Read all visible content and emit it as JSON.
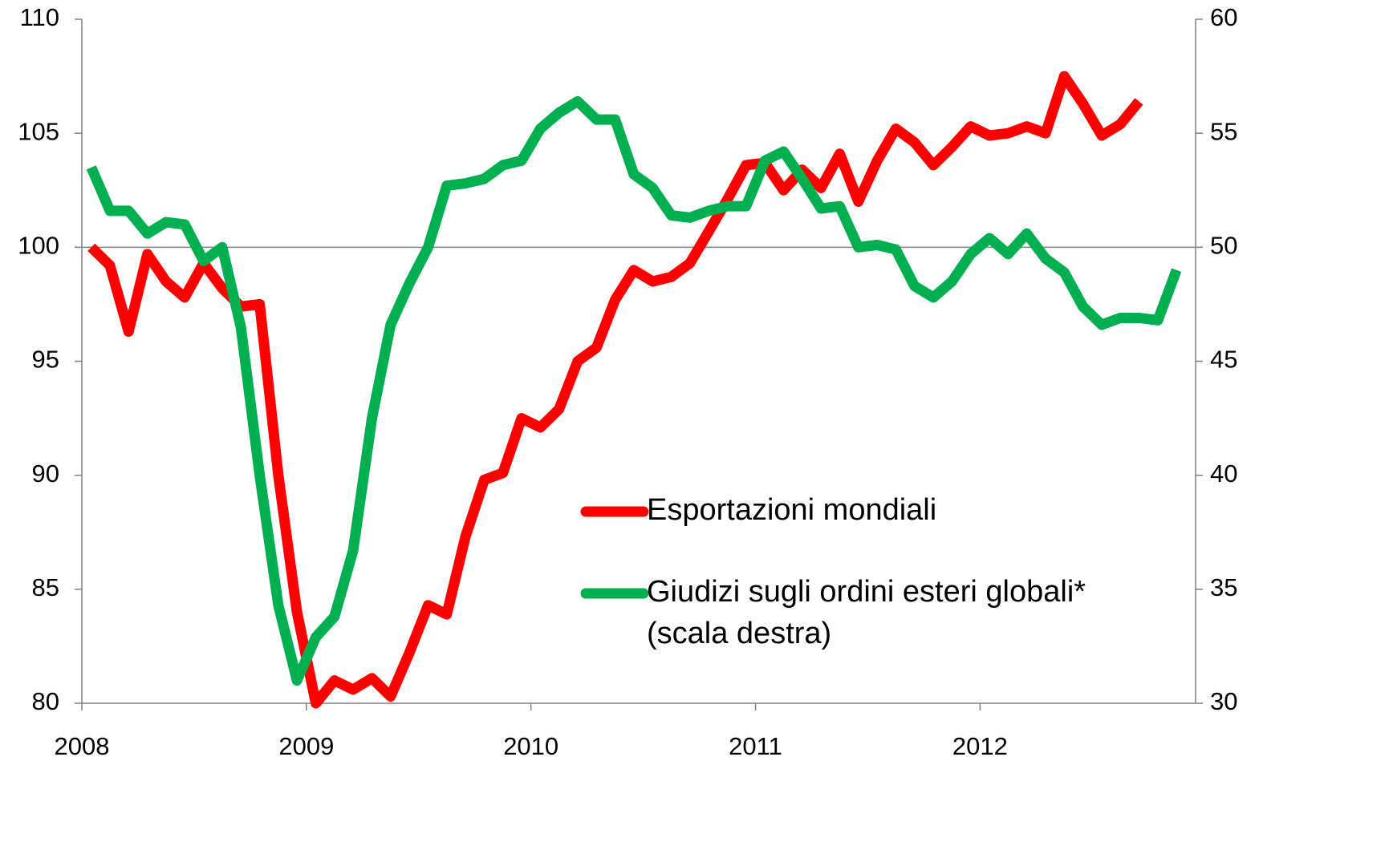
{
  "chart_data": {
    "type": "line",
    "x": [
      2008.042,
      2008.125,
      2008.208,
      2008.292,
      2008.375,
      2008.458,
      2008.542,
      2008.625,
      2008.708,
      2008.792,
      2008.875,
      2008.958,
      2009.042,
      2009.125,
      2009.208,
      2009.292,
      2009.375,
      2009.458,
      2009.542,
      2009.625,
      2009.708,
      2009.792,
      2009.875,
      2009.958,
      2010.042,
      2010.125,
      2010.208,
      2010.292,
      2010.375,
      2010.458,
      2010.542,
      2010.625,
      2010.708,
      2010.792,
      2010.875,
      2010.958,
      2011.042,
      2011.125,
      2011.208,
      2011.292,
      2011.375,
      2011.458,
      2011.542,
      2011.625,
      2011.708,
      2011.792,
      2011.875,
      2011.958,
      2012.042,
      2012.125,
      2012.208,
      2012.292,
      2012.375,
      2012.458,
      2012.542,
      2012.625,
      2012.708,
      2012.792,
      2012.875
    ],
    "series": [
      {
        "name": "Esportazioni mondiali",
        "color": "#ff0000",
        "axis": "y",
        "values": [
          100.0,
          99.2,
          96.3,
          99.7,
          98.5,
          97.8,
          99.3,
          98.2,
          97.4,
          97.5,
          90.0,
          84.0,
          80.0,
          81.0,
          80.6,
          81.1,
          80.3,
          82.2,
          84.3,
          83.9,
          87.3,
          89.8,
          90.1,
          92.5,
          92.1,
          92.9,
          95.0,
          95.6,
          97.7,
          99.0,
          98.5,
          98.7,
          99.3,
          100.7,
          102.1,
          103.6,
          103.7,
          102.5,
          103.4,
          102.6,
          104.1,
          102.0,
          103.8,
          105.2,
          104.6,
          103.6,
          104.4,
          105.3,
          104.9,
          105.0,
          105.3,
          105.0,
          107.5,
          106.3,
          104.9,
          105.4,
          106.4,
          null,
          null
        ]
      },
      {
        "name": "Giudizi sugli ordini esteri globali*\n(scala destra)",
        "color": "#00b050",
        "axis": "y2",
        "values": [
          53.5,
          51.6,
          51.6,
          50.6,
          51.1,
          51.0,
          49.4,
          50.0,
          46.5,
          40.0,
          34.3,
          31.0,
          32.9,
          33.8,
          36.7,
          42.5,
          46.6,
          48.4,
          50.0,
          52.7,
          52.8,
          53.0,
          53.6,
          53.8,
          55.2,
          55.9,
          56.4,
          55.6,
          55.6,
          53.2,
          52.6,
          51.4,
          51.3,
          51.6,
          51.8,
          51.8,
          53.8,
          54.2,
          53.0,
          51.7,
          51.8,
          50.0,
          50.1,
          49.9,
          48.3,
          47.8,
          48.5,
          49.7,
          50.4,
          49.7,
          50.6,
          49.5,
          48.9,
          47.4,
          46.6,
          46.9,
          46.9,
          46.8,
          49.0
        ]
      }
    ],
    "xlim": [
      2008,
      2012.96
    ],
    "xticks": [
      2008,
      2009,
      2010,
      2011,
      2012
    ],
    "ylim": [
      80,
      110
    ],
    "yticks": [
      80,
      85,
      90,
      95,
      100,
      105,
      110
    ],
    "y2lim": [
      30,
      60
    ],
    "y2ticks": [
      30,
      35,
      40,
      45,
      50,
      55,
      60
    ],
    "reference_line": 100,
    "legend": "center-right"
  }
}
